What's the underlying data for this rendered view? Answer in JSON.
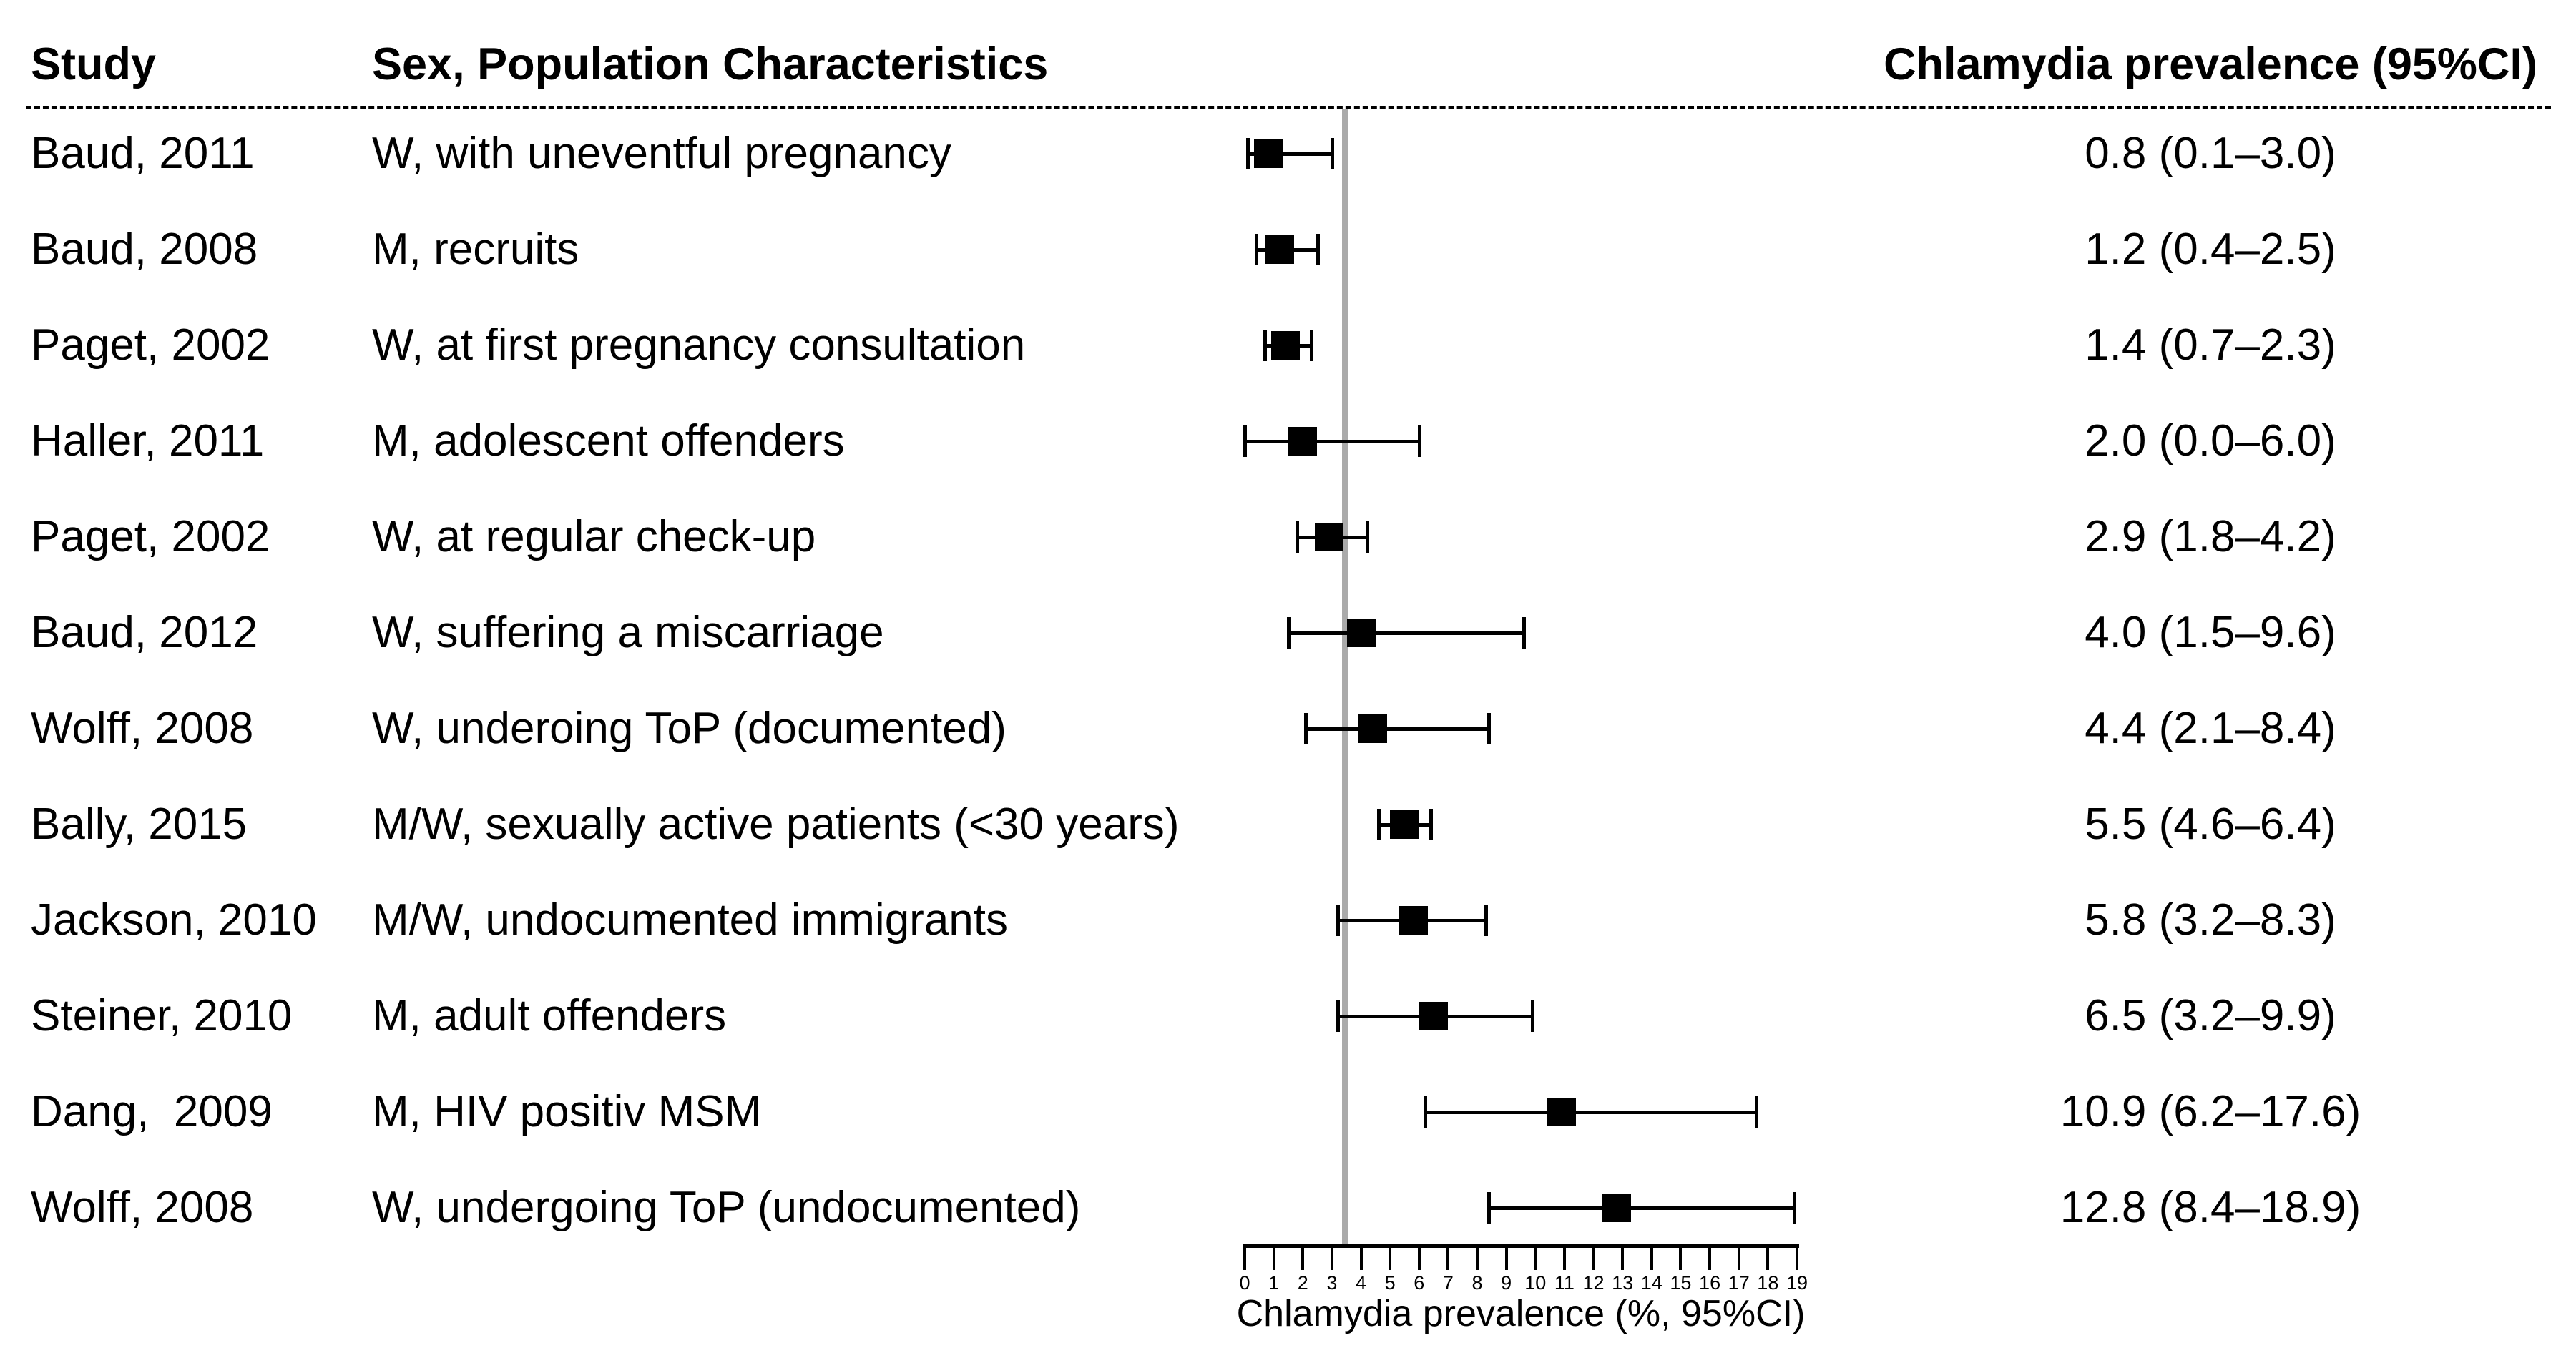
{
  "headers": {
    "study": "Study",
    "population": "Sex, Population Characteristics",
    "prevalence": "Chlamydia prevalence (95%CI)"
  },
  "chart_data": {
    "type": "scatter",
    "subtype": "forest-plot",
    "title": "",
    "xlabel": "Chlamydia prevalence (%, 95%CI)",
    "xlim": [
      0,
      19
    ],
    "xticks": [
      0,
      1,
      2,
      3,
      4,
      5,
      6,
      7,
      8,
      9,
      10,
      11,
      12,
      13,
      14,
      15,
      16,
      17,
      18,
      19
    ],
    "grid": false,
    "reference_line_x": 3.45,
    "reference_line_color": "#aaaaaa",
    "marker_color": "#000000",
    "rows": [
      {
        "study": "Baud, 2011",
        "population": "W, with uneventful pregnancy",
        "estimate": 0.8,
        "ci_low": 0.1,
        "ci_high": 3.0,
        "label": "0.8 (0.1–3.0)"
      },
      {
        "study": "Baud, 2008",
        "population": "M, recruits",
        "estimate": 1.2,
        "ci_low": 0.4,
        "ci_high": 2.5,
        "label": "1.2 (0.4–2.5)"
      },
      {
        "study": "Paget, 2002",
        "population": "W, at first pregnancy consultation",
        "estimate": 1.4,
        "ci_low": 0.7,
        "ci_high": 2.3,
        "label": "1.4 (0.7–2.3)"
      },
      {
        "study": "Haller, 2011",
        "population": "M, adolescent offenders",
        "estimate": 2.0,
        "ci_low": 0.0,
        "ci_high": 6.0,
        "label": "2.0 (0.0–6.0)"
      },
      {
        "study": "Paget, 2002",
        "population": "W, at regular check-up",
        "estimate": 2.9,
        "ci_low": 1.8,
        "ci_high": 4.2,
        "label": "2.9 (1.8–4.2)"
      },
      {
        "study": "Baud, 2012",
        "population": "W, suffering a miscarriage",
        "estimate": 4.0,
        "ci_low": 1.5,
        "ci_high": 9.6,
        "label": "4.0 (1.5–9.6)"
      },
      {
        "study": "Wolff, 2008",
        "population": "W, underoing ToP (documented)",
        "estimate": 4.4,
        "ci_low": 2.1,
        "ci_high": 8.4,
        "label": "4.4 (2.1–8.4)"
      },
      {
        "study": "Bally, 2015",
        "population": "M/W, sexually active patients (<30 years)",
        "estimate": 5.5,
        "ci_low": 4.6,
        "ci_high": 6.4,
        "label": "5.5 (4.6–6.4)"
      },
      {
        "study": "Jackson, 2010",
        "population": "M/W, undocumented immigrants",
        "estimate": 5.8,
        "ci_low": 3.2,
        "ci_high": 8.3,
        "label": "5.8 (3.2–8.3)"
      },
      {
        "study": "Steiner, 2010",
        "population": "M, adult offenders",
        "estimate": 6.5,
        "ci_low": 3.2,
        "ci_high": 9.9,
        "label": "6.5 (3.2–9.9)"
      },
      {
        "study": "Dang,  2009",
        "population": "M, HIV positiv MSM",
        "estimate": 10.9,
        "ci_low": 6.2,
        "ci_high": 17.6,
        "label": "10.9 (6.2–17.6)"
      },
      {
        "study": "Wolff, 2008",
        "population": "W, undergoing ToP (undocumented)",
        "estimate": 12.8,
        "ci_low": 8.4,
        "ci_high": 18.9,
        "label": "12.8 (8.4–18.9)"
      }
    ]
  }
}
